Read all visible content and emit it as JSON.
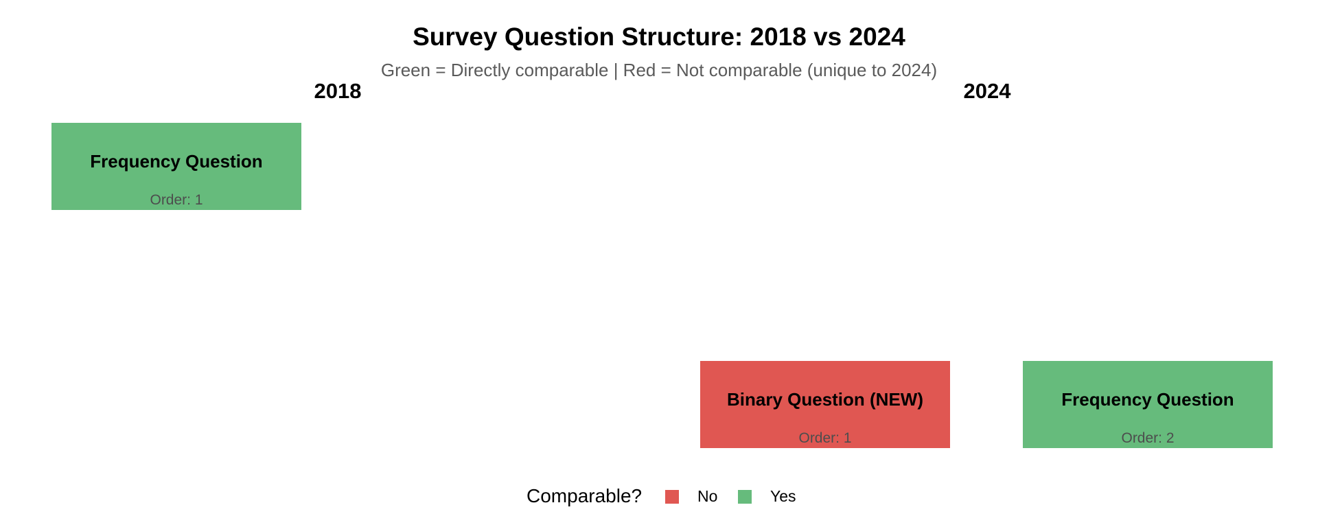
{
  "title": "Survey Question Structure: 2018 vs 2024",
  "subtitle": "Green = Directly comparable | Red = Not comparable (unique to 2024)",
  "colors": {
    "comparable": "#66bb7c",
    "not_comparable": "#e05752"
  },
  "years": [
    {
      "label": "2018"
    },
    {
      "label": "2024"
    }
  ],
  "questions": [
    {
      "year": "2018",
      "label": "Frequency Question",
      "order": "Order: 1",
      "comparable": "Yes"
    },
    {
      "year": "2024",
      "label": "Binary Question (NEW)",
      "order": "Order: 1",
      "comparable": "No"
    },
    {
      "year": "2024",
      "label": "Frequency Question",
      "order": "Order: 2",
      "comparable": "Yes"
    }
  ],
  "legend": {
    "title": "Comparable?",
    "items": [
      {
        "label": "No",
        "color": "#e05752"
      },
      {
        "label": "Yes",
        "color": "#66bb7c"
      }
    ]
  }
}
